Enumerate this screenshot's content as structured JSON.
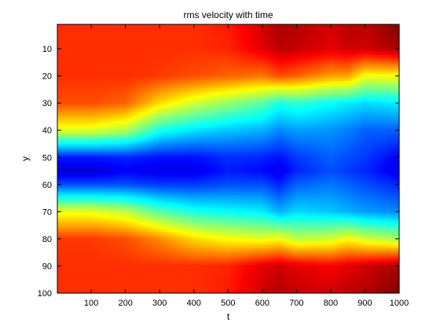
{
  "chart_data": {
    "type": "heatmap",
    "title": "rms velocity with time",
    "xlabel": "t",
    "ylabel": "y",
    "xlim": [
      1,
      1000
    ],
    "ylim": [
      1,
      100
    ],
    "y_reversed": true,
    "colormap": "jet",
    "grid": false,
    "x_ticks": [
      100,
      200,
      300,
      400,
      500,
      600,
      700,
      800,
      900,
      1000
    ],
    "y_ticks": [
      10,
      20,
      30,
      40,
      50,
      60,
      70,
      80,
      90,
      100
    ],
    "x_tick_labels": [
      "100",
      "200",
      "300",
      "400",
      "500",
      "600",
      "700",
      "800",
      "900",
      "1000"
    ],
    "y_tick_labels": [
      "10",
      "20",
      "30",
      "40",
      "50",
      "60",
      "70",
      "80",
      "90",
      "100"
    ],
    "t_samples": [
      1,
      100,
      200,
      300,
      400,
      500,
      600,
      650,
      700,
      800,
      850,
      900,
      1000
    ],
    "y_samples": [
      1,
      10,
      20,
      30,
      40,
      50,
      55,
      60,
      70,
      80,
      90,
      100
    ],
    "values": [
      [
        0.83,
        0.83,
        0.83,
        0.83,
        0.83,
        0.85,
        0.92,
        0.96,
        0.95,
        0.92,
        0.95,
        0.94,
        1.0
      ],
      [
        0.83,
        0.83,
        0.83,
        0.83,
        0.83,
        0.84,
        0.9,
        0.94,
        0.93,
        0.9,
        0.92,
        0.92,
        0.96
      ],
      [
        0.83,
        0.83,
        0.83,
        0.82,
        0.8,
        0.78,
        0.76,
        0.8,
        0.78,
        0.72,
        0.72,
        0.62,
        0.62
      ],
      [
        0.8,
        0.8,
        0.78,
        0.66,
        0.58,
        0.52,
        0.46,
        0.4,
        0.42,
        0.38,
        0.36,
        0.34,
        0.36
      ],
      [
        0.6,
        0.6,
        0.55,
        0.4,
        0.35,
        0.32,
        0.3,
        0.26,
        0.28,
        0.27,
        0.25,
        0.22,
        0.22
      ],
      [
        0.15,
        0.15,
        0.16,
        0.14,
        0.14,
        0.17,
        0.16,
        0.14,
        0.18,
        0.22,
        0.2,
        0.18,
        0.12
      ],
      [
        0.08,
        0.08,
        0.12,
        0.1,
        0.1,
        0.15,
        0.13,
        0.1,
        0.16,
        0.2,
        0.18,
        0.16,
        0.1
      ],
      [
        0.2,
        0.2,
        0.2,
        0.18,
        0.18,
        0.2,
        0.2,
        0.16,
        0.22,
        0.24,
        0.22,
        0.2,
        0.16
      ],
      [
        0.6,
        0.6,
        0.56,
        0.46,
        0.4,
        0.38,
        0.36,
        0.3,
        0.34,
        0.32,
        0.3,
        0.28,
        0.26
      ],
      [
        0.82,
        0.82,
        0.8,
        0.74,
        0.66,
        0.62,
        0.6,
        0.62,
        0.56,
        0.58,
        0.62,
        0.58,
        0.54
      ],
      [
        0.83,
        0.83,
        0.83,
        0.83,
        0.83,
        0.84,
        0.9,
        0.92,
        0.9,
        0.88,
        0.9,
        0.92,
        0.96
      ],
      [
        0.83,
        0.83,
        0.83,
        0.83,
        0.83,
        0.85,
        0.92,
        0.95,
        0.93,
        0.92,
        0.94,
        0.95,
        1.0
      ]
    ]
  }
}
